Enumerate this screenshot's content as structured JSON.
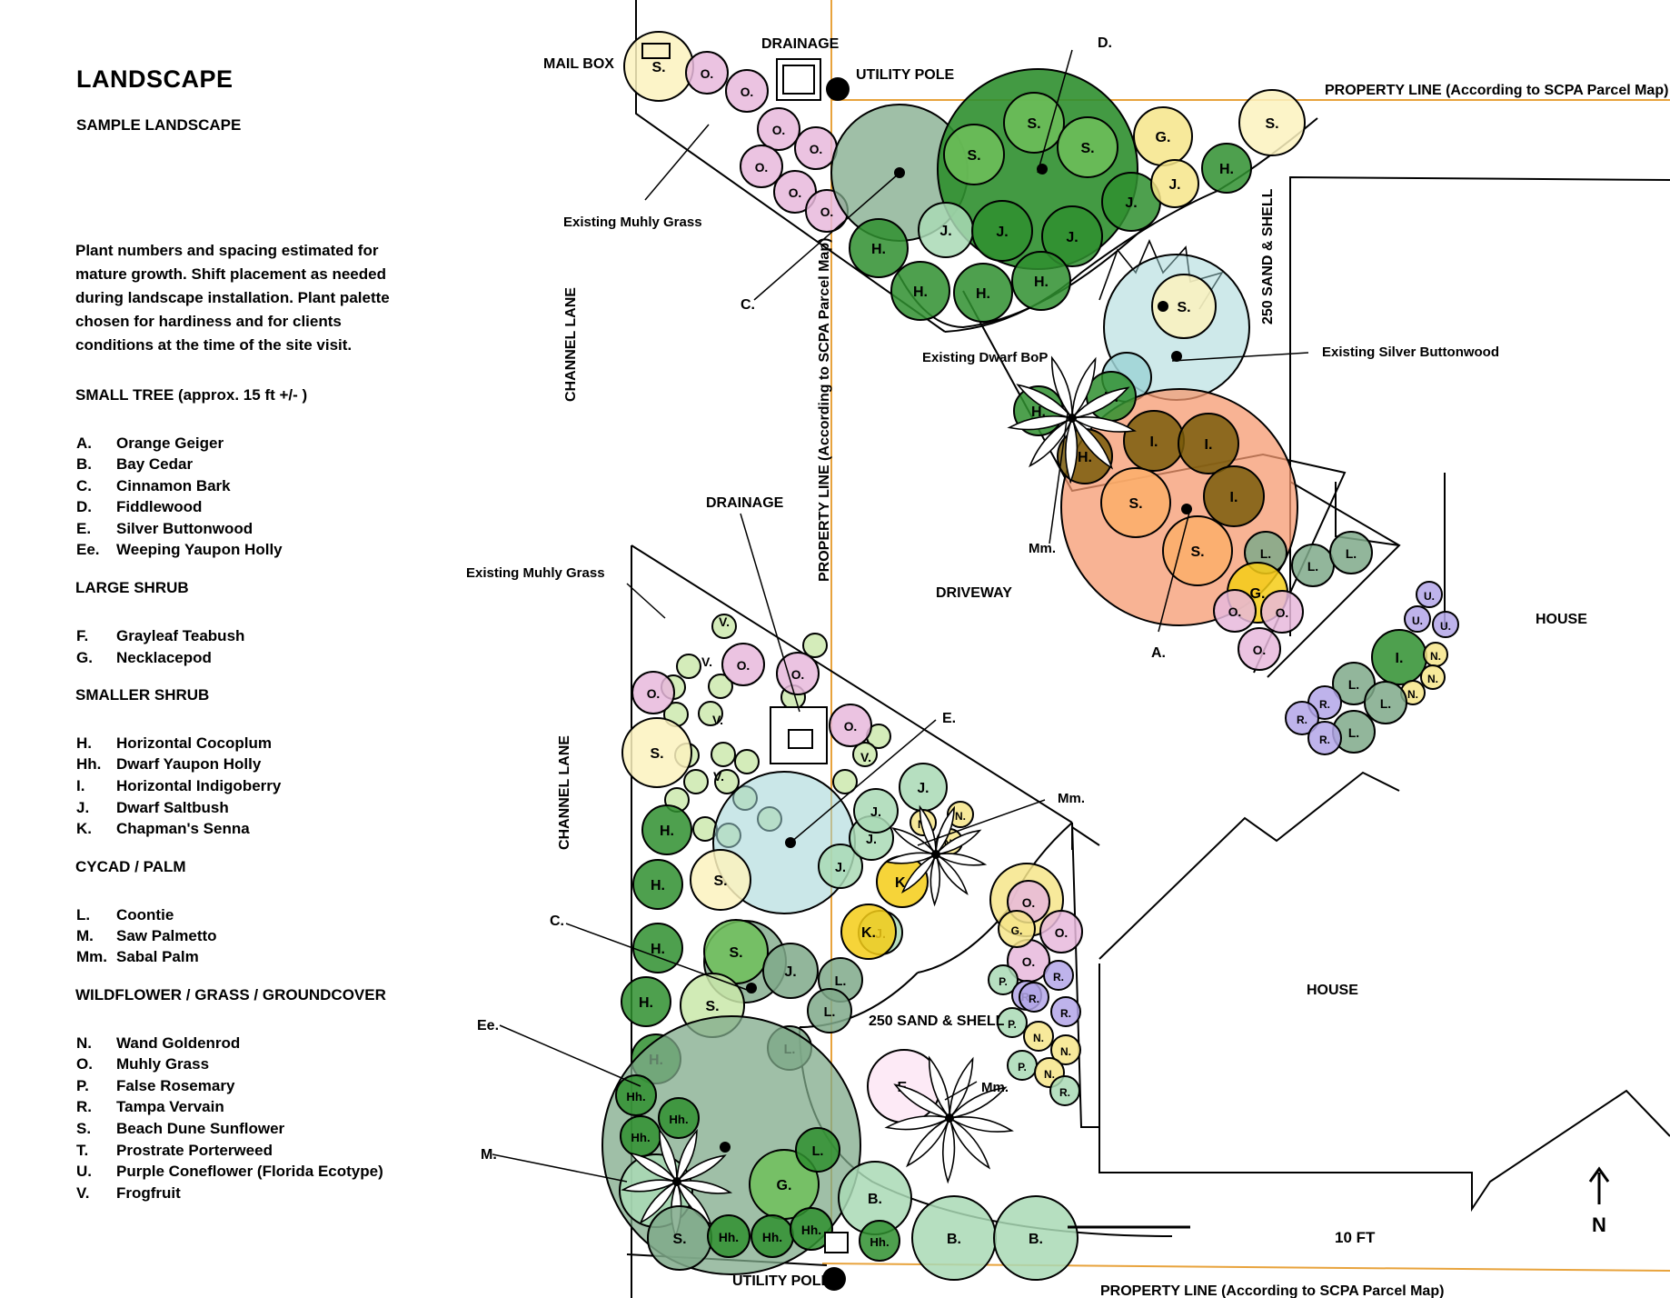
{
  "legend": {
    "title": "LANDSCAPE",
    "subtitle": "SAMPLE LANDSCAPE",
    "note": "Plant numbers and spacing estimated for mature growth. Shift placement as needed during landscape installation. Plant palette chosen for hardiness and for clients conditions at the time of the site visit.",
    "sections": [
      {
        "heading": "SMALL TREE (approx. 15 ft +/- )",
        "items": [
          {
            "code": "A.",
            "name": "Orange Geiger"
          },
          {
            "code": "B.",
            "name": "Bay Cedar"
          },
          {
            "code": "C.",
            "name": "Cinnamon Bark"
          },
          {
            "code": "D.",
            "name": "Fiddlewood"
          },
          {
            "code": "E.",
            "name": "Silver Buttonwood"
          },
          {
            "code": "Ee.",
            "name": "Weeping Yaupon Holly"
          }
        ]
      },
      {
        "heading": "LARGE SHRUB",
        "items": [
          {
            "code": "F.",
            "name": "Grayleaf Teabush"
          },
          {
            "code": "G.",
            "name": "Necklacepod"
          }
        ]
      },
      {
        "heading": "SMALLER SHRUB",
        "items": [
          {
            "code": "H.",
            "name": "Horizontal Cocoplum"
          },
          {
            "code": "Hh.",
            "name": "Dwarf Yaupon Holly"
          },
          {
            "code": "I.",
            "name": "Horizontal Indigoberry"
          },
          {
            "code": "J.",
            "name": "Dwarf Saltbush"
          },
          {
            "code": "K.",
            "name": "Chapman's Senna"
          }
        ]
      },
      {
        "heading": "CYCAD / PALM",
        "items": [
          {
            "code": "L.",
            "name": "Coontie"
          },
          {
            "code": "M.",
            "name": "Saw Palmetto"
          },
          {
            "code": "Mm.",
            "name": "Sabal Palm"
          }
        ]
      },
      {
        "heading": "WILDFLOWER  / GRASS / GROUNDCOVER",
        "items": [
          {
            "code": "N.",
            "name": "Wand Goldenrod"
          },
          {
            "code": "O.",
            "name": "Muhly Grass"
          },
          {
            "code": "P.",
            "name": "False Rosemary"
          },
          {
            "code": "R.",
            "name": "Tampa Vervain"
          },
          {
            "code": "S.",
            "name": "Beach Dune Sunflower"
          },
          {
            "code": "T.",
            "name": "Prostrate Porterweed"
          },
          {
            "code": "U.",
            "name": "Purple Coneflower (Florida Ecotype)"
          },
          {
            "code": "V.",
            "name": "Frogfruit"
          }
        ]
      }
    ]
  },
  "labels": {
    "mailbox": "MAIL BOX",
    "drainage_top": "DRAINAGE",
    "utility_pole_top": "UTILITY POLE",
    "property_line_top": "PROPERTY LINE (According to SCPA  Parcel Map)",
    "property_line_bottom": "PROPERTY LINE (According to SCPA  Parcel Map)",
    "property_line_vertical": "PROPERTY LINE (According to SCPA  Parcel Map)",
    "existing_muhly_1": "Existing Muhly Grass",
    "existing_muhly_2": "Existing Muhly Grass",
    "channel_lane_1": "CHANNEL LANE",
    "channel_lane_2": "CHANNEL LANE",
    "sand_shell_1": "250 SAND & SHELL",
    "sand_shell_2": "250 SAND & SHELL",
    "existing_dwarf_bop": "Existing Dwarf BoP",
    "existing_silver_buttonwood": "Existing Silver Buttonwood",
    "driveway": "DRIVEWAY",
    "drainage_mid": "DRAINAGE",
    "house_1": "HOUSE",
    "house_2": "HOUSE",
    "utility_pole_bottom": "UTILITY POLE",
    "scale": "10 FT",
    "north": "N",
    "callout_d": "D.",
    "callout_c1": "C.",
    "callout_c2": "C.",
    "callout_a": "A.",
    "callout_e": "E.",
    "callout_ee": "Ee.",
    "callout_m": "M.",
    "callout_mm1": "Mm.",
    "callout_mm2": "Mm.",
    "callout_mm3": "Mm."
  },
  "colors": {
    "property_line": "#e8a33c",
    "olive_dark": "#7a5c0a",
    "green_dark": "#2f8f2f",
    "green_mid": "#6fbf5a",
    "sage": "#7fa98a",
    "mint": "#a9d9b5",
    "pink": "#e7b9dc",
    "yellow": "#f6e58a",
    "cream": "#fbf2be",
    "lime": "#c9e7a9",
    "teal": "#9ed4d6",
    "orange": "#fbae6a",
    "salmon": "#f69a70",
    "purple": "#b3a6e8",
    "gold": "#f5cc16"
  }
}
